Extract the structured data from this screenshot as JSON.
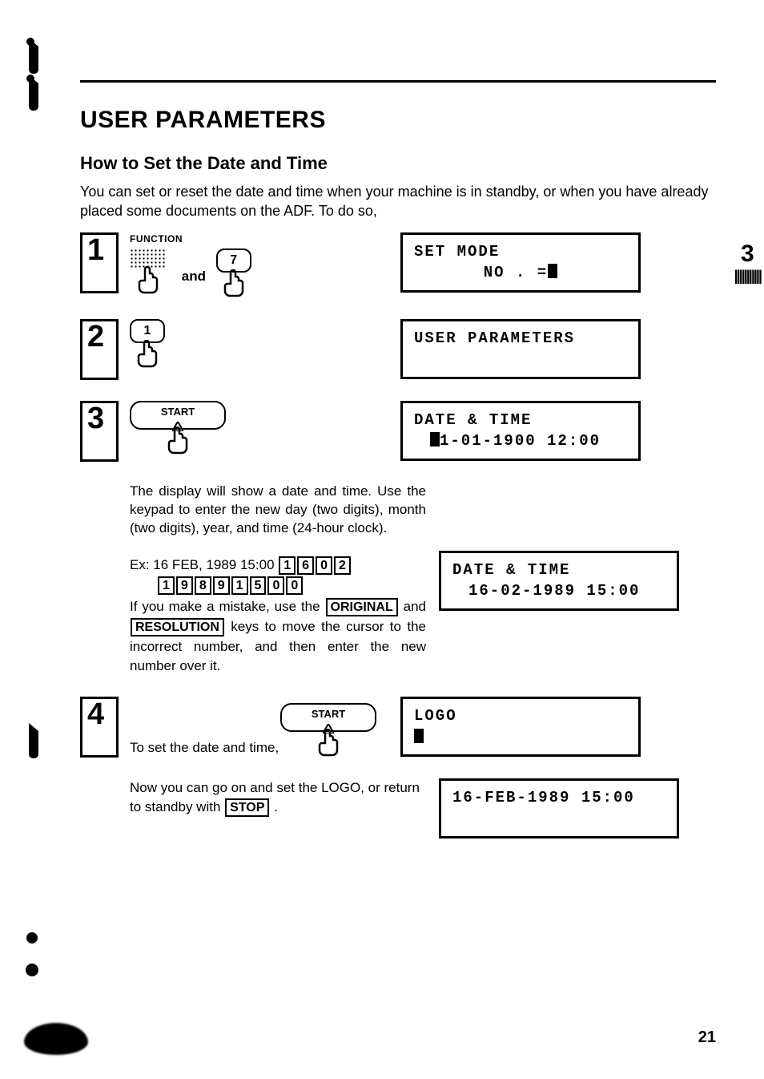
{
  "header": {
    "title": "USER PARAMETERS"
  },
  "section": {
    "subtitle": "How to Set the Date and Time",
    "intro": "You can set or reset the date and time when your machine is in standby, or when you have already placed some documents on the ADF. To do so,"
  },
  "sideTab": {
    "number": "3"
  },
  "steps": {
    "s1": {
      "num": "1",
      "funcLabel": "FUNCTION",
      "and": "and",
      "key7": "7",
      "display_l1": "SET  MODE",
      "display_l2": "NO . ="
    },
    "s2": {
      "num": "2",
      "key1": "1",
      "display_l1": "USER  PARAMETERS"
    },
    "s3": {
      "num": "3",
      "startLabel": "START",
      "display_l1": "DATE  &  TIME",
      "display_l2": "1-01-1900  12:00"
    },
    "explain": "The display will show a date and time. Use the keypad to enter the new day (two digits), month (two digits), year, and time (24-hour clock).",
    "example": {
      "prefix": "Ex:",
      "line1": "16 FEB, 1989 15:00",
      "keys1": [
        "1",
        "6",
        "0",
        "2"
      ],
      "keys2": [
        "1",
        "9",
        "8",
        "9",
        "1",
        "5",
        "0",
        "0"
      ],
      "mistake1": "If you make a mistake, use the",
      "original": "ORIGINAL",
      "and": "and",
      "resolution": "RESOLUTION",
      "mistake2": "keys to move the cursor to the incorrect number, and then enter the new number over it."
    },
    "display3b_l1": "DATE  &  TIME",
    "display3b_l2": "16-02-1989  15:00",
    "s4": {
      "num": "4",
      "text": "To set the date and time,",
      "startLabel": "START",
      "display_l1": "LOGO"
    },
    "closing": {
      "text1": "Now you can go on and set the LOGO, or return to standby with",
      "stop": "STOP",
      "display": "16-FEB-1989  15:00"
    }
  },
  "pageNumber": "21"
}
